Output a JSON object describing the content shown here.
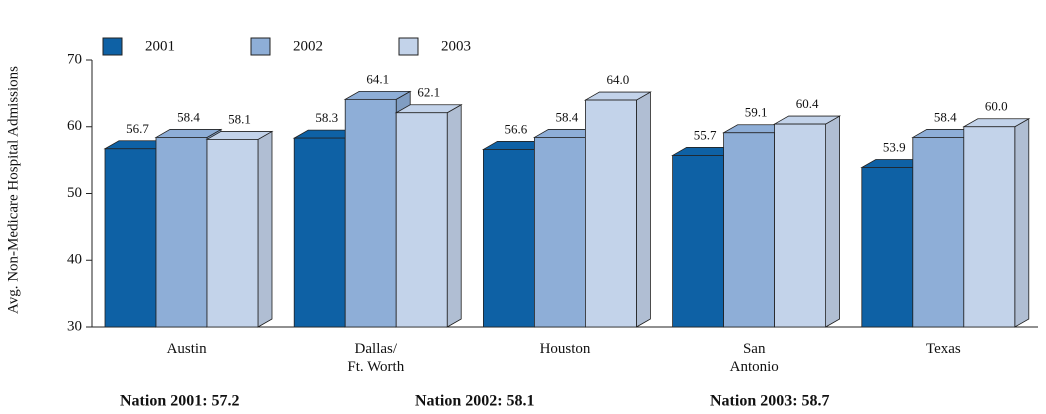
{
  "chart_data": {
    "type": "bar3d",
    "ylabel": "Avg. Non-Medicare Hospital Admissions",
    "categories": [
      "Austin",
      "Dallas/\nFt. Worth",
      "Houston",
      "San\nAntonio",
      "Texas"
    ],
    "series": [
      {
        "name": "2001",
        "color": "#0e61a5",
        "values": [
          56.7,
          58.3,
          56.6,
          55.7,
          53.9
        ],
        "value_labels": [
          "56.7",
          "58.3",
          "56.6",
          "55.7",
          "53.9"
        ]
      },
      {
        "name": "2002",
        "color": "#8eaed7",
        "values": [
          58.4,
          64.1,
          58.4,
          59.1,
          58.4
        ],
        "value_labels": [
          "58.4",
          "64.1",
          "58.4",
          "59.1",
          "58.4"
        ]
      },
      {
        "name": "2003",
        "color": "#c3d3ea",
        "values": [
          58.1,
          62.1,
          64.0,
          60.4,
          60.0
        ],
        "value_labels": [
          "58.1",
          "62.1",
          "64.0",
          "60.4",
          "60.0"
        ]
      }
    ],
    "ylim": [
      30,
      70
    ],
    "yticks": [
      30,
      40,
      50,
      60,
      70
    ],
    "annotations": [
      "Nation 2001: 57.2",
      "Nation 2002: 58.1",
      "Nation 2003: 58.7"
    ]
  }
}
